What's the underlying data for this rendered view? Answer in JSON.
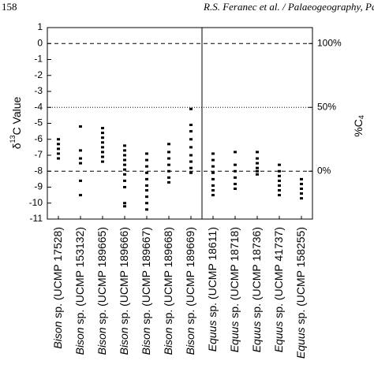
{
  "header": {
    "page": "158",
    "running_title": "R.S. Feranec et al. / Palaeogeography, Palaeoc"
  },
  "chart_data": {
    "type": "strip",
    "y_label": {
      "prefix": "δ",
      "sup": "13",
      "rest": "C Value"
    },
    "y2_label": {
      "prefix": "%C",
      "sub": "4"
    },
    "categories": [
      {
        "genus": "Bison",
        "specimen": "sp. (UCMP 17528)"
      },
      {
        "genus": "Bison",
        "specimen": "sp. (UCMP 153132)"
      },
      {
        "genus": "Bison",
        "specimen": "sp. (UCMP 189665)"
      },
      {
        "genus": "Bison",
        "specimen": "sp. (UCMP 189666)"
      },
      {
        "genus": "Bison",
        "specimen": "sp. (UCMP 189667)"
      },
      {
        "genus": "Bison",
        "specimen": "sp. (UCMP 189668)"
      },
      {
        "genus": "Bison",
        "specimen": "sp. (UCMP 189669)"
      },
      {
        "genus": "Equus",
        "specimen": "sp. (UCMP 18611)"
      },
      {
        "genus": "Equus",
        "specimen": "sp. (UCMP 18718)"
      },
      {
        "genus": "Equus",
        "specimen": "sp. (UCMP 18736)"
      },
      {
        "genus": "Equus",
        "specimen": "sp. (UCMP 41737)"
      },
      {
        "genus": "Equus",
        "specimen": "sp. (UCMP 158255)"
      }
    ],
    "values": [
      [
        -6.0,
        -6.3,
        -6.6,
        -6.9,
        -7.2
      ],
      [
        -5.2,
        -6.7,
        -7.2,
        -7.5,
        -8.6,
        -9.5
      ],
      [
        -5.3,
        -5.6,
        -5.9,
        -6.2,
        -6.5,
        -6.8,
        -7.1,
        -7.4
      ],
      [
        -6.4,
        -6.7,
        -7.0,
        -7.3,
        -7.6,
        -7.9,
        -8.2,
        -8.6,
        -9.0,
        -10.0,
        -10.2
      ],
      [
        -6.9,
        -7.3,
        -7.7,
        -8.1,
        -8.5,
        -8.9,
        -9.2,
        -9.6,
        -10.0,
        -10.4
      ],
      [
        -6.3,
        -6.8,
        -7.2,
        -7.6,
        -8.0,
        -8.4,
        -8.7
      ],
      [
        -4.1,
        -5.1,
        -5.5,
        -6.0,
        -6.5,
        -7.0,
        -7.4,
        -7.8,
        -8.1
      ],
      [
        -6.9,
        -7.3,
        -7.7,
        -8.1,
        -8.5,
        -8.9,
        -9.2,
        -9.5
      ],
      [
        -6.8,
        -7.6,
        -8.0,
        -8.4,
        -8.8,
        -9.1
      ],
      [
        -6.8,
        -7.2,
        -7.5,
        -7.8,
        -8.0,
        -8.2
      ],
      [
        -7.6,
        -8.0,
        -8.3,
        -8.6,
        -8.9,
        -9.2,
        -9.5
      ],
      [
        -8.5,
        -8.8,
        -9.1,
        -9.4,
        -9.7
      ]
    ],
    "color": "#000000",
    "ylim": [
      -11,
      1
    ],
    "yticks": [
      1,
      0,
      -1,
      -2,
      -3,
      -4,
      -5,
      -6,
      -7,
      -8,
      -9,
      -10,
      -11
    ],
    "y2lim": [
      -37.5,
      112.5
    ],
    "y2ticks": [
      {
        "value": 0,
        "label": "0%"
      },
      {
        "value": 50,
        "label": "50%"
      },
      {
        "value": 100,
        "label": "100%"
      }
    ],
    "y2grid_style": [
      "dashed",
      "dotted",
      "dashed"
    ],
    "group_divider_after": 7
  }
}
